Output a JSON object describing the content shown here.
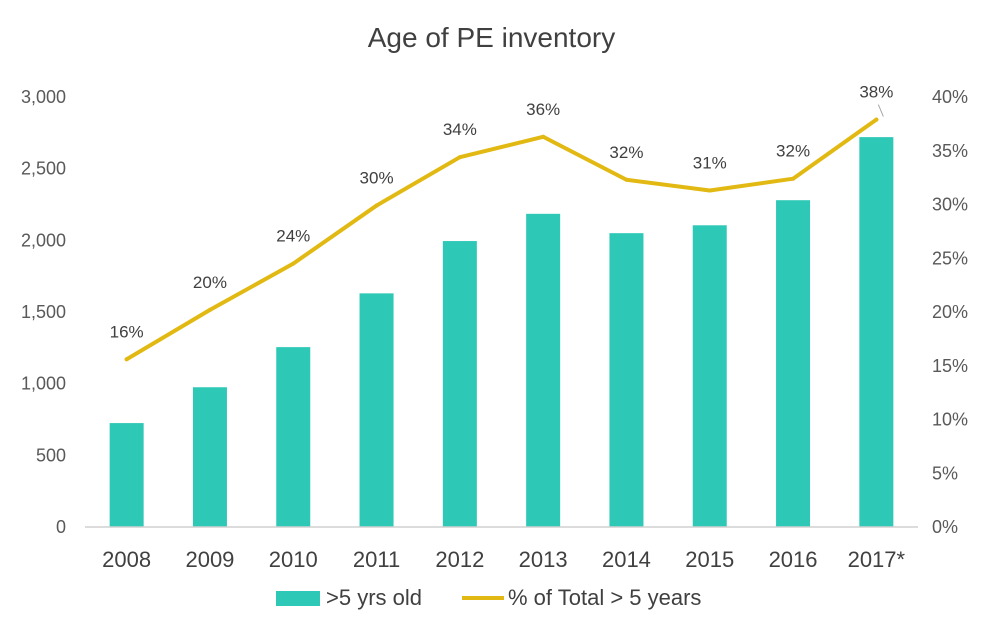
{
  "chart_data": {
    "type": "bar",
    "title": "Age of PE inventory",
    "categories": [
      "2008",
      "2009",
      "2010",
      "2011",
      "2012",
      "2013",
      "2014",
      "2015",
      "2016",
      "2017*"
    ],
    "series": [
      {
        "name": ">5 yrs old",
        "type": "bar",
        "axis": "left",
        "values": [
          725,
          975,
          1255,
          1630,
          1995,
          2185,
          2050,
          2105,
          2280,
          2720
        ]
      },
      {
        "name": "% of Total > 5 years",
        "type": "line",
        "axis": "right",
        "values": [
          16,
          20,
          24,
          30,
          34,
          36,
          32,
          31,
          32,
          38
        ],
        "plotted": [
          15.6,
          20.2,
          24.5,
          29.9,
          34.4,
          36.3,
          32.3,
          31.3,
          32.4,
          37.9
        ]
      }
    ],
    "left_axis": {
      "ylim": [
        0,
        3000
      ],
      "ticks": [
        "0",
        "500",
        "1,000",
        "1,500",
        "2,000",
        "2,500",
        "3,000"
      ]
    },
    "right_axis": {
      "ylim": [
        0,
        40
      ],
      "ticks": [
        "0%",
        "5%",
        "10%",
        "15%",
        "20%",
        "25%",
        "30%",
        "35%",
        "40%"
      ]
    },
    "data_labels": [
      "16%",
      "20%",
      "24%",
      "30%",
      "34%",
      "36%",
      "32%",
      "31%",
      "32%",
      "38%"
    ],
    "legend": {
      "position": "bottom",
      "items": [
        ">5 yrs old",
        "% of Total > 5 years"
      ]
    },
    "grid": false,
    "colors": {
      "bar": "#2ec8b6",
      "line": "#e2b912",
      "axis": "#d0d0d0",
      "text": "#404040"
    }
  }
}
